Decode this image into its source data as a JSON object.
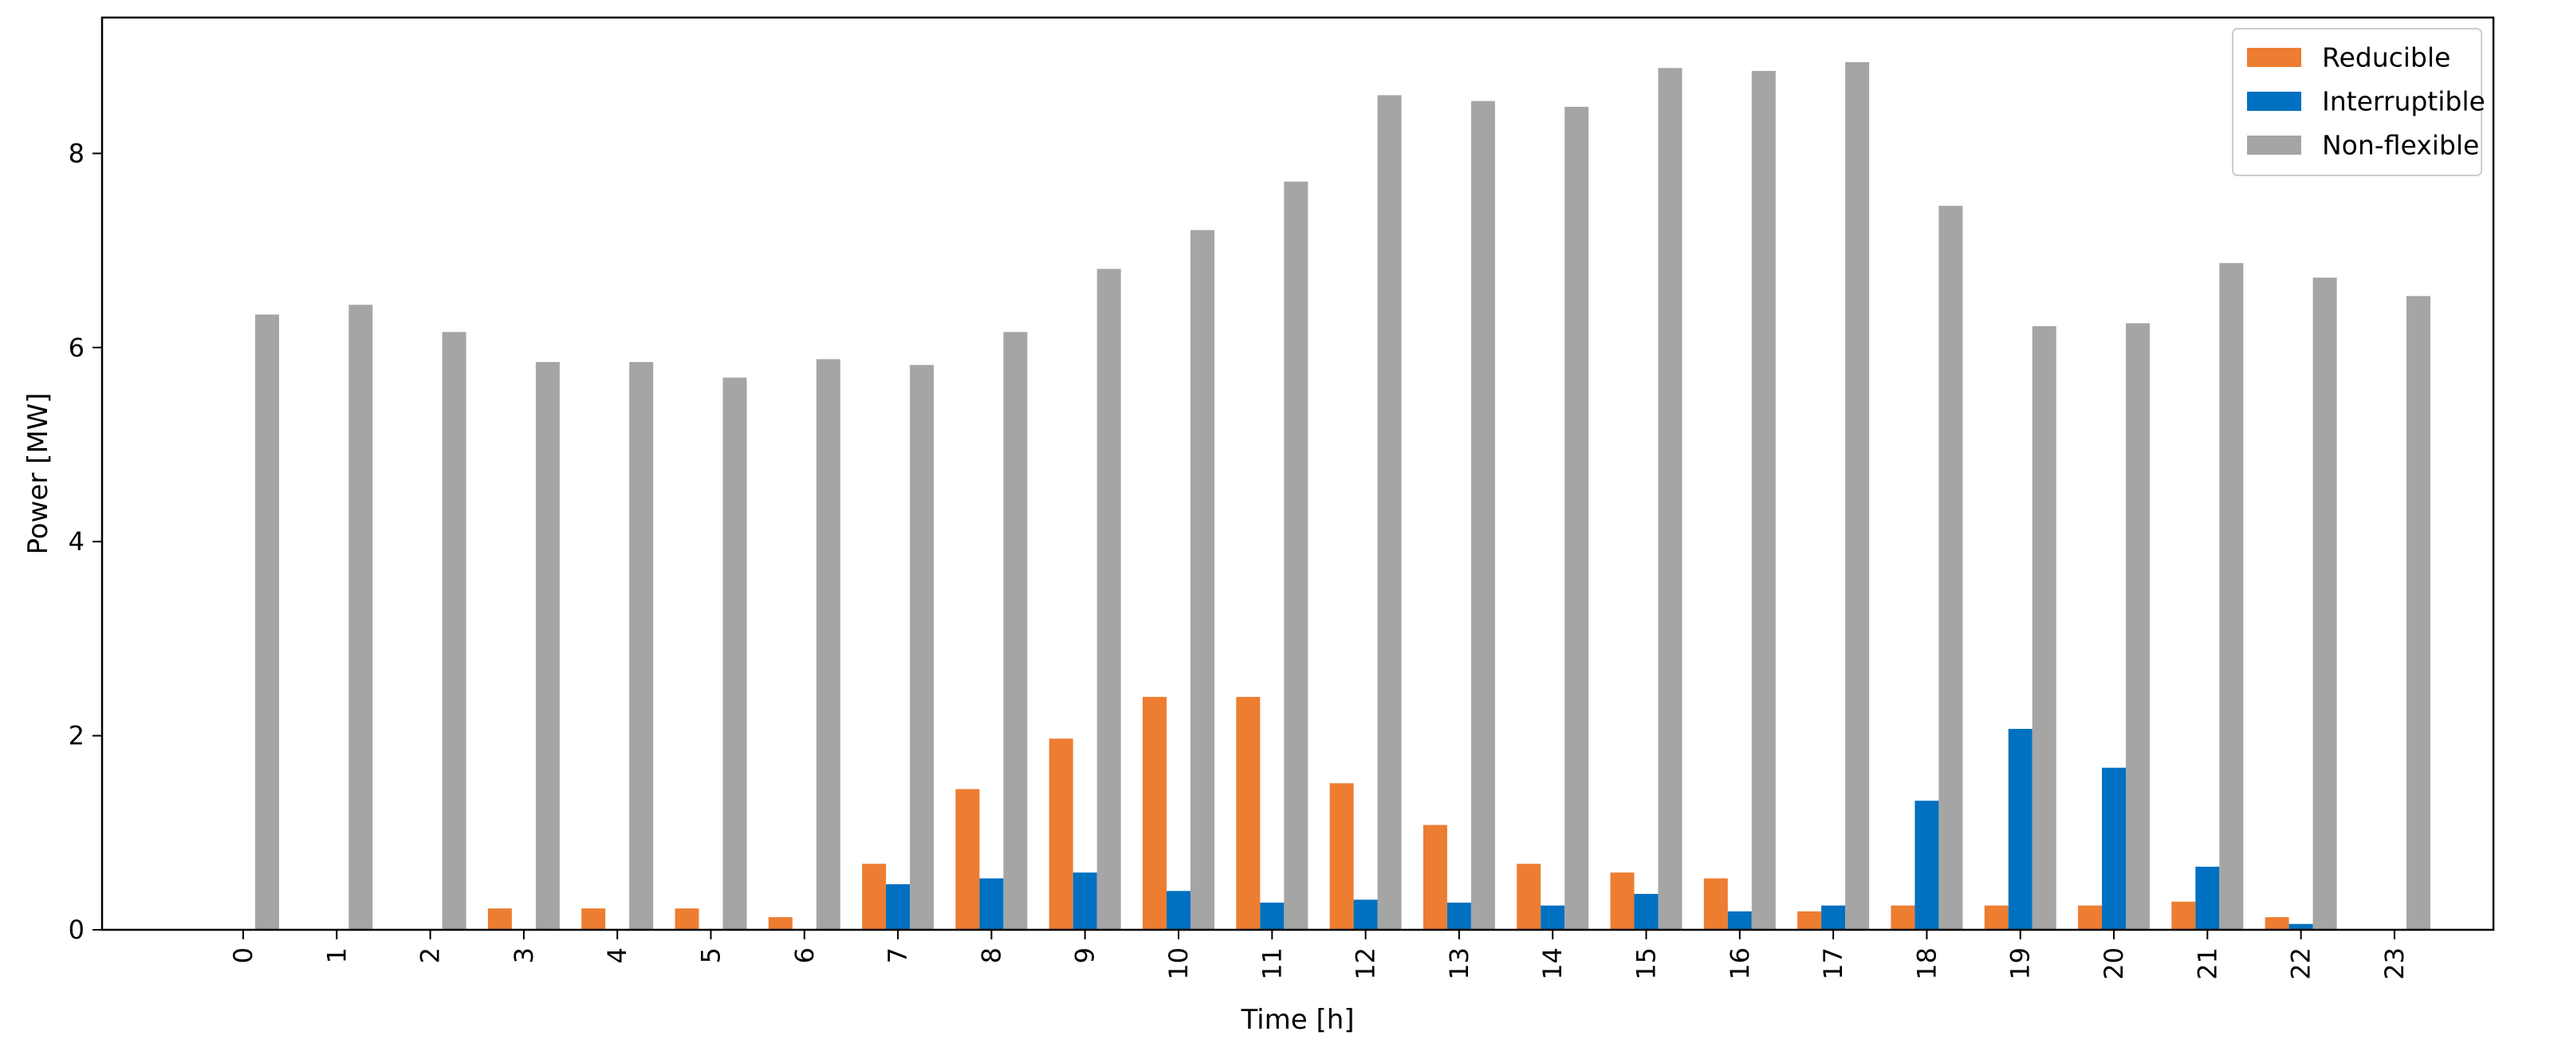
{
  "chart_data": {
    "type": "bar",
    "title": "",
    "xlabel": "Time [h]",
    "ylabel": "Power [MW]",
    "ylim": [
      0,
      9.4
    ],
    "yticks": [
      0,
      2,
      4,
      6,
      8
    ],
    "grid": false,
    "legend_position": "top-right",
    "categories": [
      "0",
      "1",
      "2",
      "3",
      "4",
      "5",
      "6",
      "7",
      "8",
      "9",
      "10",
      "11",
      "12",
      "13",
      "14",
      "15",
      "16",
      "17",
      "18",
      "19",
      "20",
      "21",
      "22",
      "23"
    ],
    "series": [
      {
        "name": "Reducible",
        "color": "#ed7d31",
        "values": [
          0,
          0,
          0,
          0.22,
          0.22,
          0.22,
          0.13,
          0.68,
          1.45,
          1.97,
          2.4,
          2.4,
          1.51,
          1.08,
          0.68,
          0.59,
          0.53,
          0.19,
          0.25,
          0.25,
          0.25,
          0.29,
          0.13,
          0
        ]
      },
      {
        "name": "Interruptible",
        "color": "#0070c0",
        "values": [
          0,
          0,
          0,
          0,
          0,
          0,
          0,
          0.47,
          0.53,
          0.59,
          0.4,
          0.28,
          0.31,
          0.28,
          0.25,
          0.37,
          0.19,
          0.25,
          1.33,
          2.07,
          1.67,
          0.65,
          0.06,
          0
        ]
      },
      {
        "name": "Non-flexible",
        "color": "#a5a5a5",
        "values": [
          6.34,
          6.44,
          6.16,
          5.85,
          5.85,
          5.69,
          5.88,
          5.82,
          6.16,
          6.81,
          7.21,
          7.71,
          8.6,
          8.54,
          8.48,
          8.88,
          8.85,
          8.94,
          7.46,
          6.22,
          6.25,
          6.87,
          6.72,
          6.53
        ]
      }
    ]
  }
}
